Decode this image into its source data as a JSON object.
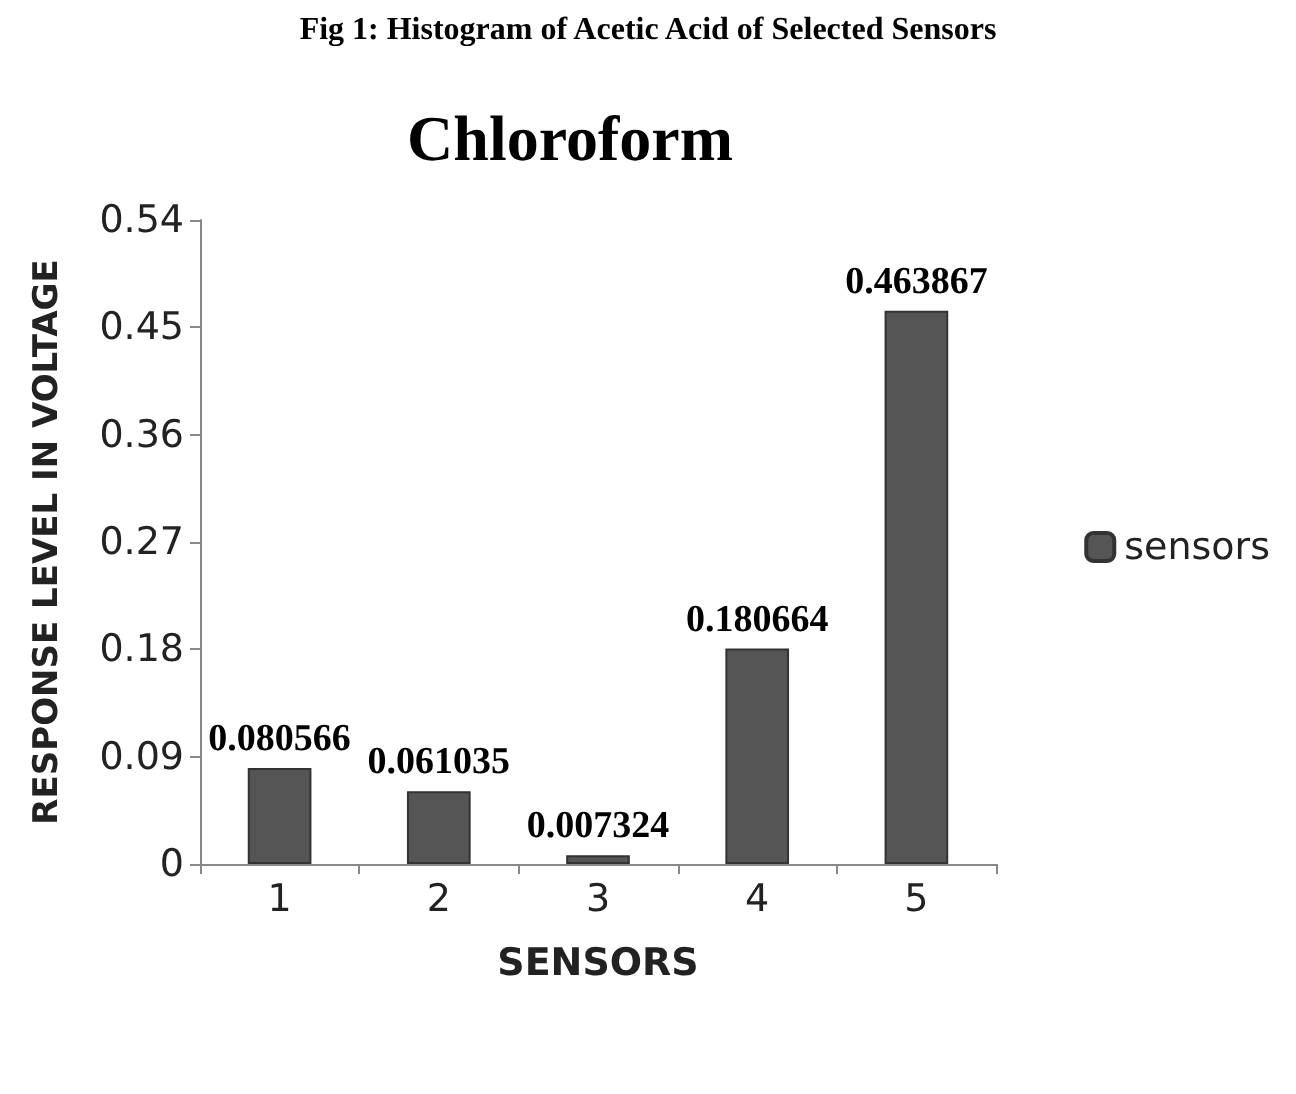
{
  "chart_data": {
    "type": "bar",
    "title": "Chloroform",
    "xlabel": "SENSORS",
    "ylabel": "RESPONSE LEVEL IN VOLTAGE",
    "annotations": [
      "Fig 1: Histogram of Acetic Acid of Selected Sensors"
    ],
    "categories": [
      "1",
      "2",
      "3",
      "4",
      "5"
    ],
    "series": [
      {
        "name": "sensors",
        "color": "#555555",
        "values": [
          0.080566,
          0.061035,
          0.007324,
          0.180664,
          0.463867
        ]
      }
    ],
    "ylim": [
      0,
      0.54
    ],
    "yticks": [
      0,
      0.09,
      0.18,
      0.27,
      0.36,
      0.45,
      0.54
    ],
    "grid": false,
    "legend": "right",
    "data_labels": true
  }
}
